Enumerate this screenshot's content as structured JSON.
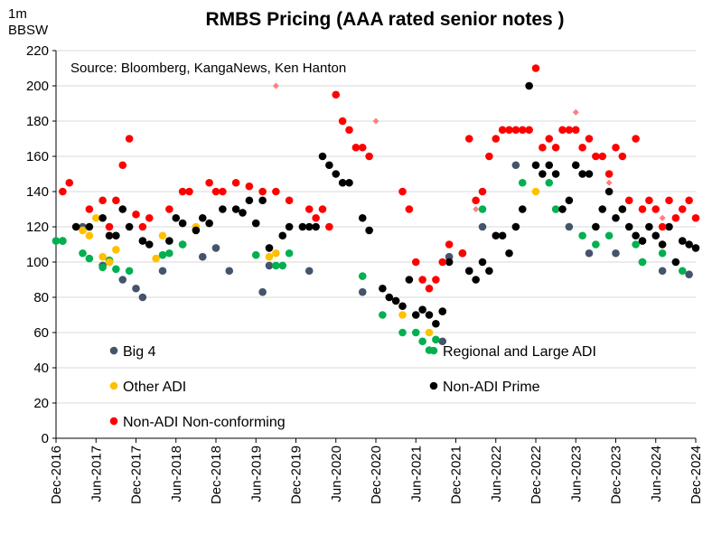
{
  "chart_data": {
    "type": "scatter",
    "title": "RMBS Pricing (AAA rated senior notes )",
    "ylabel_line1": "1m",
    "ylabel_line2": "BBSW",
    "source": "Source: Bloomberg, KangaNews, Ken Hanton",
    "ylim": [
      0,
      220
    ],
    "yticks": [
      0,
      20,
      40,
      60,
      80,
      100,
      120,
      140,
      160,
      180,
      200,
      220
    ],
    "xlim": [
      "2016-12",
      "2024-12"
    ],
    "xticks": [
      "Dec-2016",
      "Jun-2017",
      "Dec-2017",
      "Jun-2018",
      "Dec-2018",
      "Jun-2019",
      "Dec-2019",
      "Jun-2020",
      "Dec-2020",
      "Jun-2021",
      "Dec-2021",
      "Jun-2022",
      "Dec-2022",
      "Jun-2023",
      "Dec-2023",
      "Jun-2024",
      "Dec-2024"
    ],
    "grid": "horizontal",
    "series": [
      {
        "name": "Big 4",
        "color": "#44546a",
        "marker": "circle",
        "x": [
          "2017-01",
          "2017-04",
          "2017-07",
          "2017-08",
          "2017-10",
          "2017-12",
          "2018-01",
          "2018-04",
          "2018-07",
          "2018-10",
          "2018-12",
          "2019-02",
          "2019-07",
          "2019-08",
          "2020-02",
          "2020-10",
          "2021-10",
          "2021-11",
          "2022-02",
          "2022-04",
          "2022-09",
          "2023-05",
          "2023-08",
          "2023-12",
          "2024-04",
          "2024-07",
          "2024-11"
        ],
        "y": [
          112,
          120,
          98,
          100,
          90,
          85,
          80,
          95,
          110,
          103,
          108,
          95,
          83,
          98,
          95,
          83,
          55,
          103,
          95,
          120,
          155,
          120,
          105,
          105,
          100,
          95,
          93
        ]
      },
      {
        "name": "Regional and Large ADI",
        "color": "#00b050",
        "marker": "circle",
        "x": [
          "2016-12",
          "2017-01",
          "2017-04",
          "2017-05",
          "2017-07",
          "2017-08",
          "2017-09",
          "2017-11",
          "2018-04",
          "2018-05",
          "2018-07",
          "2019-06",
          "2019-09",
          "2019-10",
          "2019-11",
          "2020-10",
          "2021-01",
          "2021-04",
          "2021-06",
          "2021-07",
          "2021-08",
          "2021-09",
          "2022-04",
          "2022-10",
          "2023-02",
          "2023-03",
          "2023-07",
          "2023-09",
          "2023-11",
          "2024-03",
          "2024-04",
          "2024-07",
          "2024-10"
        ],
        "y": [
          112,
          112,
          105,
          102,
          97,
          101,
          96,
          95,
          104,
          105,
          110,
          104,
          98,
          98,
          105,
          92,
          70,
          60,
          60,
          55,
          50,
          56,
          130,
          145,
          145,
          130,
          115,
          110,
          115,
          110,
          100,
          105,
          95
        ]
      },
      {
        "name": "Other ADI",
        "color": "#ffc000",
        "marker": "circle",
        "x": [
          "2017-04",
          "2017-05",
          "2017-06",
          "2017-07",
          "2017-08",
          "2017-09",
          "2018-03",
          "2018-04",
          "2018-09",
          "2019-08",
          "2019-09",
          "2021-04",
          "2021-08",
          "2021-10",
          "2022-12",
          "2023-04",
          "2023-09",
          "2024-01",
          "2024-07"
        ],
        "y": [
          118,
          115,
          125,
          103,
          100,
          107,
          102,
          115,
          120,
          103,
          105,
          70,
          60,
          72,
          140,
          130,
          120,
          130,
          110
        ]
      },
      {
        "name": "Non-ADI Prime",
        "color": "#000000",
        "marker": "circle",
        "x": [
          "2017-03",
          "2017-05",
          "2017-07",
          "2017-08",
          "2017-09",
          "2017-10",
          "2017-11",
          "2018-01",
          "2018-02",
          "2018-05",
          "2018-06",
          "2018-07",
          "2018-09",
          "2018-10",
          "2018-11",
          "2019-01",
          "2019-03",
          "2019-04",
          "2019-05",
          "2019-06",
          "2019-07",
          "2019-08",
          "2019-10",
          "2019-11",
          "2020-01",
          "2020-02",
          "2020-03",
          "2020-04",
          "2020-05",
          "2020-06",
          "2020-07",
          "2020-08",
          "2020-10",
          "2020-11",
          "2021-01",
          "2021-02",
          "2021-03",
          "2021-04",
          "2021-05",
          "2021-06",
          "2021-07",
          "2021-08",
          "2021-09",
          "2021-10",
          "2021-11",
          "2022-01",
          "2022-02",
          "2022-03",
          "2022-04",
          "2022-05",
          "2022-06",
          "2022-07",
          "2022-08",
          "2022-09",
          "2022-10",
          "2022-11",
          "2022-12",
          "2023-01",
          "2023-02",
          "2023-03",
          "2023-04",
          "2023-05",
          "2023-06",
          "2023-07",
          "2023-08",
          "2023-09",
          "2023-10",
          "2023-11",
          "2023-12",
          "2024-01",
          "2024-02",
          "2024-03",
          "2024-04",
          "2024-05",
          "2024-06",
          "2024-07",
          "2024-08",
          "2024-09",
          "2024-10",
          "2024-11",
          "2024-12"
        ],
        "y": [
          120,
          120,
          125,
          115,
          115,
          130,
          120,
          112,
          110,
          112,
          125,
          122,
          118,
          125,
          122,
          130,
          130,
          128,
          135,
          122,
          135,
          108,
          115,
          120,
          120,
          120,
          120,
          160,
          155,
          150,
          145,
          145,
          125,
          118,
          85,
          80,
          78,
          75,
          90,
          70,
          73,
          70,
          65,
          72,
          100,
          105,
          95,
          90,
          100,
          95,
          115,
          115,
          105,
          120,
          130,
          200,
          155,
          150,
          155,
          150,
          130,
          135,
          155,
          150,
          150,
          120,
          130,
          140,
          125,
          130,
          120,
          115,
          112,
          120,
          115,
          110,
          120,
          100,
          112,
          110,
          108
        ]
      },
      {
        "name": "Non-ADI Non-conforming",
        "color": "#ff0000",
        "marker": "circle",
        "x": [
          "2017-01",
          "2017-02",
          "2017-05",
          "2017-07",
          "2017-08",
          "2017-09",
          "2017-10",
          "2017-11",
          "2017-12",
          "2018-01",
          "2018-02",
          "2018-05",
          "2018-07",
          "2018-08",
          "2018-11",
          "2018-12",
          "2019-01",
          "2019-03",
          "2019-05",
          "2019-07",
          "2019-09",
          "2019-11",
          "2020-02",
          "2020-03",
          "2020-04",
          "2020-05",
          "2020-06",
          "2020-07",
          "2020-08",
          "2020-09",
          "2020-10",
          "2020-11",
          "2021-04",
          "2021-05",
          "2021-06",
          "2021-07",
          "2021-08",
          "2021-09",
          "2021-10",
          "2021-11",
          "2022-01",
          "2022-02",
          "2022-03",
          "2022-04",
          "2022-05",
          "2022-06",
          "2022-07",
          "2022-08",
          "2022-09",
          "2022-10",
          "2022-11",
          "2022-12",
          "2023-01",
          "2023-02",
          "2023-03",
          "2023-04",
          "2023-05",
          "2023-06",
          "2023-07",
          "2023-08",
          "2023-09",
          "2023-10",
          "2023-11",
          "2023-12",
          "2024-01",
          "2024-02",
          "2024-03",
          "2024-04",
          "2024-05",
          "2024-06",
          "2024-07",
          "2024-08",
          "2024-09",
          "2024-10",
          "2024-11",
          "2024-12"
        ],
        "y": [
          140,
          145,
          130,
          135,
          120,
          135,
          155,
          170,
          127,
          120,
          125,
          130,
          140,
          140,
          145,
          140,
          140,
          145,
          143,
          140,
          140,
          135,
          130,
          125,
          130,
          120,
          195,
          180,
          175,
          165,
          165,
          160,
          140,
          130,
          100,
          90,
          85,
          90,
          100,
          110,
          105,
          170,
          135,
          140,
          160,
          170,
          175,
          175,
          175,
          175,
          175,
          210,
          165,
          170,
          165,
          175,
          175,
          175,
          165,
          170,
          160,
          160,
          150,
          165,
          160,
          135,
          170,
          130,
          135,
          130,
          120,
          135,
          125,
          130,
          135,
          125
        ]
      }
    ],
    "extra_markers": {
      "color": "#ff7f7f",
      "marker": "diamond",
      "x": [
        "2019-09",
        "2020-12",
        "2022-03",
        "2023-06",
        "2023-11",
        "2024-07"
      ],
      "y": [
        200,
        180,
        130,
        185,
        145,
        125
      ]
    },
    "legend_layout": [
      {
        "series": 0,
        "col": 0,
        "row": 0
      },
      {
        "series": 1,
        "col": 1,
        "row": 0
      },
      {
        "series": 2,
        "col": 0,
        "row": 1
      },
      {
        "series": 3,
        "col": 1,
        "row": 1
      },
      {
        "series": 4,
        "col": 0,
        "row": 2
      }
    ]
  }
}
